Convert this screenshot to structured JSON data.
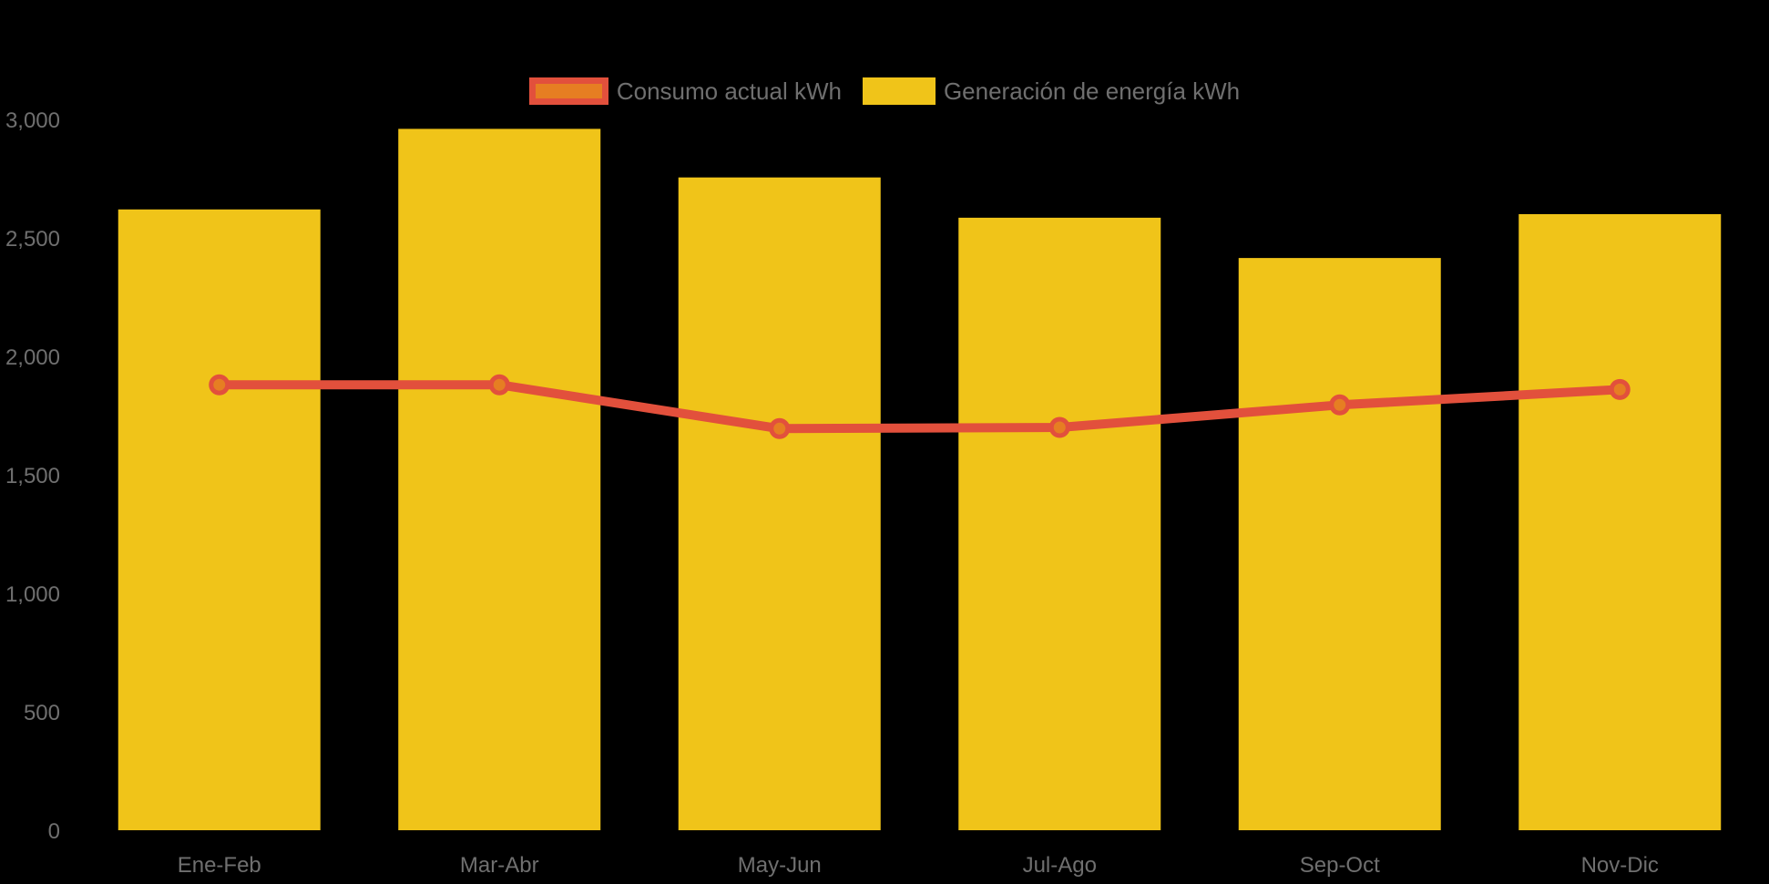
{
  "chart_data": {
    "type": "bar",
    "title": "",
    "xlabel": "",
    "ylabel": "",
    "categories": [
      "Ene-Feb",
      "Mar-Abr",
      "May-Jun",
      "Jul-Ago",
      "Sep-Oct",
      "Nov-Dic"
    ],
    "series": [
      {
        "name": "Consumo actual kWh",
        "type": "line",
        "values": [
          1880,
          1880,
          1695,
          1700,
          1795,
          1860
        ],
        "color": "#e2503c",
        "marker_fill": "#e67e22"
      },
      {
        "name": "Generación de energía kWh",
        "type": "bar",
        "values": [
          2620,
          2960,
          2755,
          2585,
          2415,
          2600
        ],
        "color": "#f0c419"
      }
    ],
    "ylim": [
      0,
      3000
    ],
    "ytick_step": 500,
    "ytick_labels": [
      "0",
      "500",
      "1,000",
      "1,500",
      "2,000",
      "2,500",
      "3,000"
    ],
    "grid": false,
    "legend_position": "top-center",
    "background_color": "#000000",
    "axis_text_color": "#6f6f6f"
  },
  "legend": {
    "items": [
      {
        "label": "Consumo actual kWh",
        "swatch_fill": "#e67e22",
        "swatch_border": "#e2503c"
      },
      {
        "label": "Generación de energía kWh",
        "swatch_fill": "#f0c419",
        "swatch_border": "transparent"
      }
    ]
  }
}
